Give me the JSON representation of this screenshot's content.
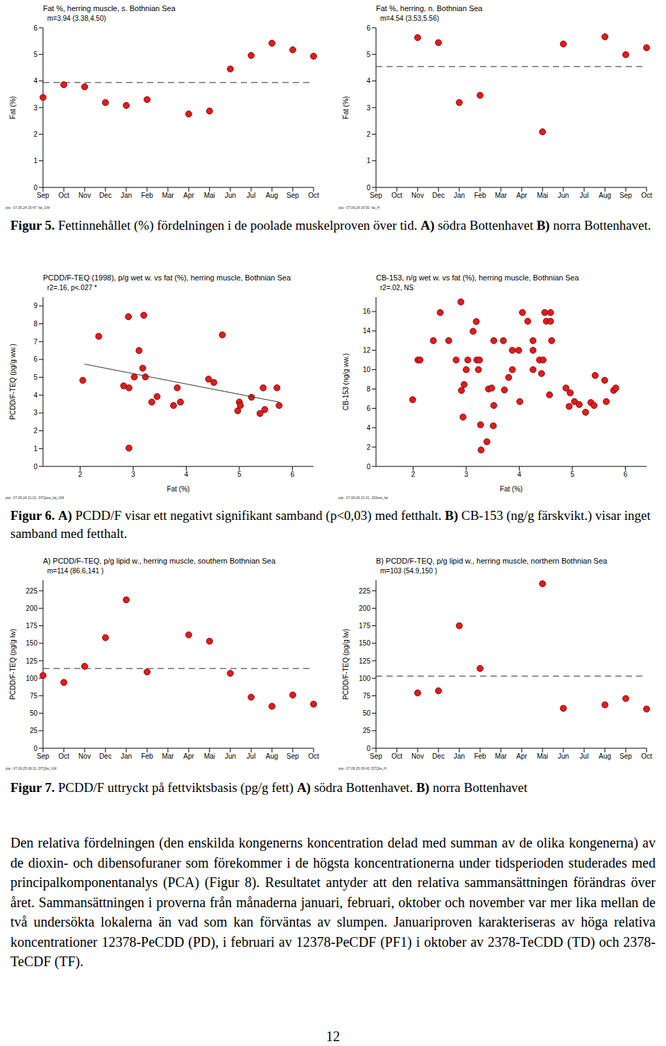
{
  "chart_data": [
    {
      "type": "scatter",
      "title": "Fat %, herring muscle, s. Bothnian Sea",
      "annotation": "m=3.94 (3.38,4.50)",
      "footnote": "pia - 07.09.24 16:47, fat_GM",
      "y_label": "Fat (%)",
      "categories": [
        "Sep",
        "Oct",
        "Nov",
        "Dec",
        "Jan",
        "Feb",
        "Mar",
        "Apr",
        "Mai",
        "Jun",
        "Jul",
        "Aug",
        "Sep",
        "Oct"
      ],
      "values": [
        3.38,
        3.86,
        3.78,
        3.19,
        3.08,
        3.3,
        null,
        2.76,
        2.87,
        4.45,
        4.96,
        5.42,
        5.17,
        4.93
      ],
      "mean": 3.94,
      "ylim": [
        0,
        6
      ],
      "yticks": [
        0,
        1,
        2,
        3,
        4,
        5,
        6
      ],
      "color": "#e31a1c",
      "marker": "circle",
      "line_style": "none",
      "grid": false
    },
    {
      "type": "scatter",
      "title": "Fat %, herring, n. Bothnian Sea",
      "annotation": "m=4.54 (3.53,5.56)",
      "footnote": "pia - 07.09.24 16:50, fat_H",
      "y_label": "Fat (%)",
      "categories": [
        "Sep",
        "Oct",
        "Nov",
        "Dec",
        "Jan",
        "Feb",
        "Mar",
        "Apr",
        "Mai",
        "Jun",
        "Jul",
        "Aug",
        "Sep",
        "Oct"
      ],
      "values": [
        null,
        null,
        5.63,
        5.44,
        3.19,
        3.46,
        null,
        null,
        2.09,
        5.39,
        null,
        5.66,
        4.99,
        5.25
      ],
      "mean": 4.54,
      "ylim": [
        0,
        6
      ],
      "yticks": [
        0,
        1,
        2,
        3,
        4,
        5,
        6
      ],
      "color": "#e31a1c",
      "marker": "circle",
      "line_style": "none",
      "grid": false
    },
    {
      "type": "scatter",
      "title": "PCDD/F-TEQ (1998), p/g wet w. vs fat (%), herring muscle, Bothnian Sea",
      "annotation": "r2=.16, p<.027 *",
      "footnote": "pia - 07.09.24 21:01, DTQww_fat_GM",
      "x_label": "Fat (%)",
      "y_label": "PCDD/F-TEQ (pg/g ww.)",
      "x": [
        2.05,
        2.35,
        2.91,
        3.2,
        2.82,
        2.92,
        3.02,
        3.11,
        3.18,
        3.23,
        3.35,
        3.45,
        3.76,
        3.83,
        3.89,
        4.42,
        4.52,
        4.68,
        2.92,
        5.0,
        5.02,
        4.97,
        5.23,
        5.39,
        5.48,
        5.45,
        5.71,
        5.75
      ],
      "values": [
        4.83,
        7.3,
        8.4,
        8.48,
        4.52,
        4.41,
        5.02,
        6.5,
        5.51,
        5.02,
        3.61,
        3.92,
        3.42,
        4.41,
        3.61,
        4.9,
        4.71,
        7.38,
        1.03,
        3.61,
        3.42,
        3.12,
        3.88,
        2.97,
        3.19,
        4.41,
        4.41,
        3.42
      ],
      "fit": {
        "x": [
          2.08,
          5.75
        ],
        "values": [
          5.74,
          3.61
        ]
      },
      "xlim": [
        1.3,
        6.4
      ],
      "xticks": [
        2,
        3,
        4,
        5,
        6
      ],
      "ylim": [
        0,
        9.5
      ],
      "yticks": [
        0,
        1,
        2,
        3,
        4,
        5,
        6,
        7,
        8,
        9
      ],
      "color": "#e31a1c",
      "marker": "circle",
      "grid": false
    },
    {
      "type": "scatter",
      "title": "CB-153, n/g wet w. vs fat (%), herring muscle, Bothnian Sea",
      "annotation": "r2=.02, NS",
      "footnote": "pia - 07.09.24 21:01, 153ww_fat",
      "x_label": "Fat (%)",
      "y_label": "CB-153 (ng/g ww.)",
      "x": [
        1.99,
        2.09,
        2.13,
        2.38,
        2.51,
        2.67,
        2.9,
        2.81,
        2.96,
        2.91,
        3.0,
        2.94,
        3.03,
        3.13,
        3.19,
        3.2,
        3.25,
        3.23,
        3.27,
        3.28,
        3.39,
        3.42,
        3.48,
        3.51,
        3.52,
        3.52,
        3.7,
        3.72,
        3.8,
        3.87,
        3.87,
        3.99,
        4.01,
        4.06,
        4.16,
        4.26,
        4.26,
        4.26,
        4.38,
        4.42,
        4.45,
        4.48,
        4.51,
        4.59,
        4.59,
        4.57,
        4.61,
        4.88,
        4.94,
        4.96,
        5.04,
        5.13,
        5.25,
        5.35,
        5.41,
        5.43,
        5.61,
        5.64,
        5.78,
        5.82
      ],
      "values": [
        6.9,
        11,
        11,
        13,
        15.9,
        13,
        17,
        11,
        8.46,
        7.85,
        10,
        5.1,
        11,
        13.96,
        14.97,
        11,
        11,
        10,
        4.3,
        1.7,
        2.55,
        8.0,
        8.1,
        4.2,
        6.3,
        13,
        13,
        7.9,
        9.2,
        10,
        12,
        12,
        6.7,
        15.9,
        15,
        13,
        12,
        10,
        11,
        9.6,
        11,
        15.9,
        15,
        15.9,
        15,
        7.4,
        13,
        8.1,
        6.2,
        7.6,
        6.7,
        6.4,
        5.6,
        6.6,
        6.3,
        9.4,
        8.9,
        6.7,
        7.85,
        8.1
      ],
      "xlim": [
        1.3,
        6.4
      ],
      "xticks": [
        2,
        3,
        4,
        5,
        6
      ],
      "ylim": [
        0,
        17.5
      ],
      "yticks": [
        0,
        2,
        4,
        6,
        8,
        10,
        12,
        14,
        16
      ],
      "color": "#e31a1c",
      "marker": "circle",
      "grid": false
    },
    {
      "type": "scatter",
      "title": "A) PCDD/F-TEQ, p/g lipid w., herring muscle, southern Bothnian Sea",
      "annotation": "m=114 (86.6,141 )",
      "footnote": "pia - 07.09.25 09:31, DTQlw_GM",
      "y_label": "PCDD/F-TEQ (pg/g lw)",
      "categories": [
        "Sep",
        "Oct",
        "Nov",
        "Dec",
        "Jan",
        "Feb",
        "Mar",
        "Apr",
        "Mai",
        "Jun",
        "Jul",
        "Aug",
        "Sep",
        "Oct"
      ],
      "values": [
        104,
        94,
        117,
        158,
        212,
        109,
        null,
        162,
        153,
        107,
        73,
        60,
        76,
        63
      ],
      "mean": 114,
      "ylim": [
        0,
        240
      ],
      "yticks": [
        0,
        25,
        50,
        75,
        100,
        125,
        150,
        175,
        200,
        225
      ],
      "color": "#e31a1c",
      "marker": "circle",
      "line_style": "none",
      "grid": false
    },
    {
      "type": "scatter",
      "title": "B) PCDD/F-TEQ, p/g lipid w., herring muscle, northern Bothnian Sea",
      "annotation": "m=103 (54.9,150 )",
      "footnote": "pia - 07.09.25 09:43, DTQlw_H",
      "y_label": "PCDD/F-TEQ (pg/g lw)",
      "categories": [
        "Sep",
        "Oct",
        "Nov",
        "Dec",
        "Jan",
        "Feb",
        "Mar",
        "Apr",
        "Mai",
        "Jun",
        "Jul",
        "Aug",
        "Sep",
        "Oct"
      ],
      "values": [
        null,
        null,
        79,
        82,
        175,
        114,
        null,
        null,
        235,
        57,
        null,
        62,
        71,
        56
      ],
      "mean": 103,
      "ylim": [
        0,
        240
      ],
      "yticks": [
        0,
        25,
        50,
        75,
        100,
        125,
        150,
        175,
        200,
        225
      ],
      "color": "#e31a1c",
      "marker": "circle",
      "line_style": "none",
      "grid": false
    }
  ],
  "captions": [
    {
      "label": "Figur 5.",
      "parts": [
        "Fettinnehållet (%) fördelningen i de poolade muskelproven över tid. ",
        "A)",
        " södra Bottenhavet ",
        "B)",
        " norra Bottenhavet."
      ]
    },
    {
      "label": "Figur 6.",
      "parts": [
        "",
        "A)",
        " PCDD/F visar ett negativt signifikant samband (p<0,03) med fetthalt. ",
        "B)",
        " CB-153 (ng/g färskvikt.) visar inget samband med fetthalt."
      ]
    },
    {
      "label": "Figur 7.",
      "parts": [
        "PCDD/F uttryckt på fettviktsbasis (pg/g fett) ",
        "A)",
        " södra Bottenhavet. ",
        "B)",
        " norra Bottenhavet"
      ]
    }
  ],
  "paragraph": "Den relativa fördelningen (den enskilda kongenerns koncentration delad med summan av de olika kongenerna) av de dioxin- och dibensofuraner som förekommer i de högsta koncentrationerna under tidsperioden studerades med principalkomponentanalys (PCA) (Figur 8). Resultatet antyder att den relativa sammansättningen förändras över året. Sammansättningen i proverna från månaderna januari, februari, oktober och november var mer lika mellan de två undersökta lokalerna än vad som kan förväntas av slumpen. Januariproven karakteriseras av höga relativa koncentrationer 12378-PeCDD (PD), i februari av 12378-PeCDF (PF1) i oktober av 2378-TeCDD (TD) och 2378-TeCDF (TF).",
  "page_number": 12
}
